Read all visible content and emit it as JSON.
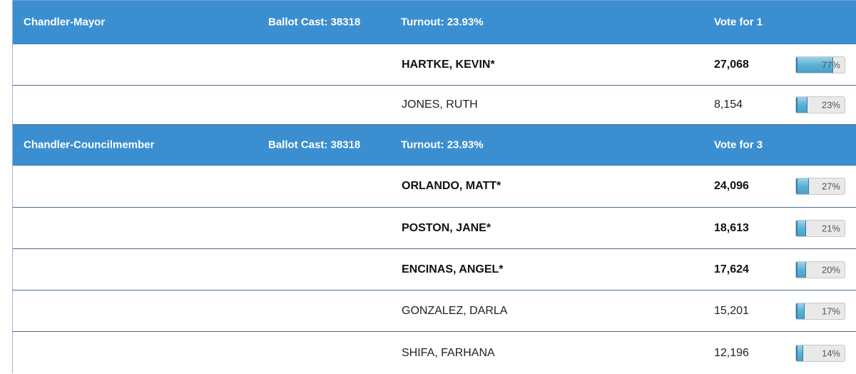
{
  "races": [
    {
      "name": "Chandler-Mayor",
      "ballot_cast": "Ballot Cast: 38318",
      "turnout": "Turnout: 23.93%",
      "vote_for": "Vote for 1",
      "candidates": [
        {
          "name": "HARTKE, KEVIN*",
          "votes": "27,068",
          "pct_label": "77%",
          "pct": 77,
          "winner": true
        },
        {
          "name": "JONES, RUTH",
          "votes": "8,154",
          "pct_label": "23%",
          "pct": 23,
          "winner": false
        }
      ]
    },
    {
      "name": "Chandler-Councilmember",
      "ballot_cast": "Ballot Cast: 38318",
      "turnout": "Turnout: 23.93%",
      "vote_for": "Vote for 3",
      "candidates": [
        {
          "name": "ORLANDO, MATT*",
          "votes": "24,096",
          "pct_label": "27%",
          "pct": 27,
          "winner": true
        },
        {
          "name": "POSTON, JANE*",
          "votes": "18,613",
          "pct_label": "21%",
          "pct": 21,
          "winner": true
        },
        {
          "name": "ENCINAS, ANGEL*",
          "votes": "17,624",
          "pct_label": "20%",
          "pct": 20,
          "winner": true
        },
        {
          "name": "GONZALEZ, DARLA",
          "votes": "15,201",
          "pct_label": "17%",
          "pct": 17,
          "winner": false
        },
        {
          "name": "SHIFA, FARHANA",
          "votes": "12,196",
          "pct_label": "14%",
          "pct": 14,
          "winner": false
        }
      ]
    }
  ],
  "colors": {
    "header_bg": "#3b8fd1",
    "header_text": "#ffffff",
    "bar_fill": "#5cb1d6",
    "bar_track": "#e9e9e9"
  }
}
